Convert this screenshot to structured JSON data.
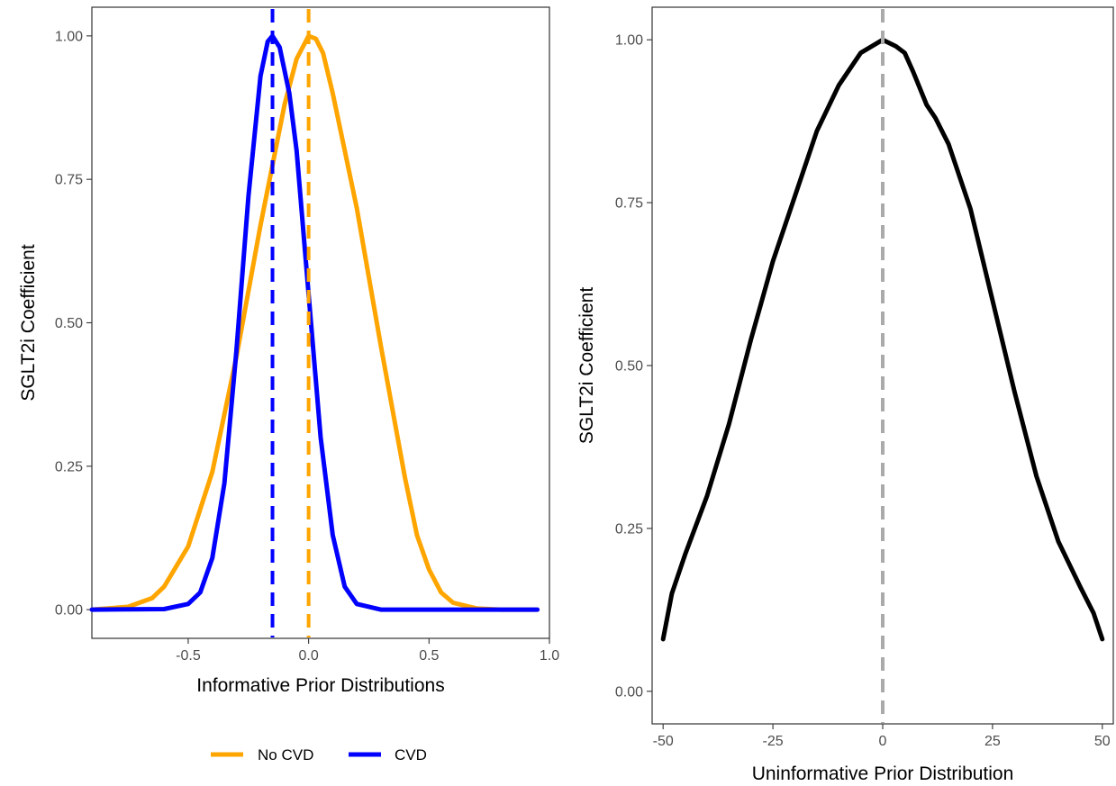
{
  "chart_data": [
    {
      "type": "line",
      "xlabel": "Informative Prior Distributions",
      "ylabel": "SGLT2i Coefficient",
      "xlim": [
        -0.9,
        1.0
      ],
      "ylim": [
        -0.05,
        1.05
      ],
      "xticks": [
        -0.5,
        0.0,
        0.5,
        1.0
      ],
      "xtick_labels": [
        "-0.5",
        "0.0",
        "0.5",
        "1.0"
      ],
      "yticks": [
        0.0,
        0.25,
        0.5,
        0.75,
        1.0
      ],
      "ytick_labels": [
        "0.00",
        "0.25",
        "0.50",
        "0.75",
        "1.00"
      ],
      "grid": false,
      "legend_position": "bottom",
      "series": [
        {
          "name": "No CVD",
          "color": "#FFA500",
          "x": [
            -0.9,
            -0.75,
            -0.65,
            -0.6,
            -0.5,
            -0.4,
            -0.3,
            -0.2,
            -0.1,
            -0.05,
            0.0,
            0.03,
            0.06,
            0.1,
            0.2,
            0.3,
            0.4,
            0.45,
            0.5,
            0.55,
            0.6,
            0.7,
            0.8,
            0.95
          ],
          "y": [
            0.0,
            0.005,
            0.02,
            0.04,
            0.11,
            0.24,
            0.44,
            0.67,
            0.88,
            0.96,
            1.0,
            0.995,
            0.97,
            0.9,
            0.7,
            0.46,
            0.23,
            0.13,
            0.07,
            0.03,
            0.012,
            0.002,
            0.0,
            0.0
          ]
        },
        {
          "name": "CVD",
          "color": "#0000FF",
          "x": [
            -0.9,
            -0.6,
            -0.5,
            -0.45,
            -0.4,
            -0.35,
            -0.3,
            -0.25,
            -0.2,
            -0.17,
            -0.15,
            -0.12,
            -0.08,
            -0.05,
            0.0,
            0.05,
            0.1,
            0.15,
            0.2,
            0.3,
            0.5,
            0.95
          ],
          "y": [
            0.0,
            0.001,
            0.01,
            0.03,
            0.09,
            0.22,
            0.45,
            0.72,
            0.93,
            0.99,
            1.0,
            0.98,
            0.9,
            0.8,
            0.55,
            0.3,
            0.13,
            0.04,
            0.01,
            0.0,
            0.0,
            0.0
          ]
        }
      ],
      "reference_lines": [
        {
          "x": -0.15,
          "color": "#0000FF",
          "style": "dashed"
        },
        {
          "x": 0.0,
          "color": "#FFA500",
          "style": "dashed"
        }
      ]
    },
    {
      "type": "line",
      "xlabel": "Uninformative Prior Distribution",
      "ylabel": "SGLT2i Coefficient",
      "xlim": [
        -52.5,
        52.5
      ],
      "ylim": [
        -0.05,
        1.05
      ],
      "xticks": [
        -50,
        -25,
        0,
        25,
        50
      ],
      "xtick_labels": [
        "-50",
        "-25",
        "0",
        "25",
        "50"
      ],
      "yticks": [
        0.0,
        0.25,
        0.5,
        0.75,
        1.0
      ],
      "ytick_labels": [
        "0.00",
        "0.25",
        "0.50",
        "0.75",
        "1.00"
      ],
      "grid": false,
      "series": [
        {
          "color": "#000000",
          "x": [
            -50,
            -48,
            -45,
            -40,
            -35,
            -30,
            -25,
            -20,
            -15,
            -10,
            -5,
            0,
            3,
            5,
            7,
            10,
            12,
            15,
            20,
            25,
            30,
            35,
            40,
            45,
            48,
            50
          ],
          "y": [
            0.08,
            0.15,
            0.21,
            0.3,
            0.41,
            0.54,
            0.66,
            0.76,
            0.86,
            0.93,
            0.98,
            1.0,
            0.99,
            0.98,
            0.95,
            0.9,
            0.88,
            0.84,
            0.74,
            0.6,
            0.46,
            0.33,
            0.23,
            0.16,
            0.12,
            0.08
          ]
        }
      ],
      "reference_lines": [
        {
          "x": 0,
          "color": "#AAAAAA",
          "style": "dashed"
        }
      ]
    }
  ]
}
